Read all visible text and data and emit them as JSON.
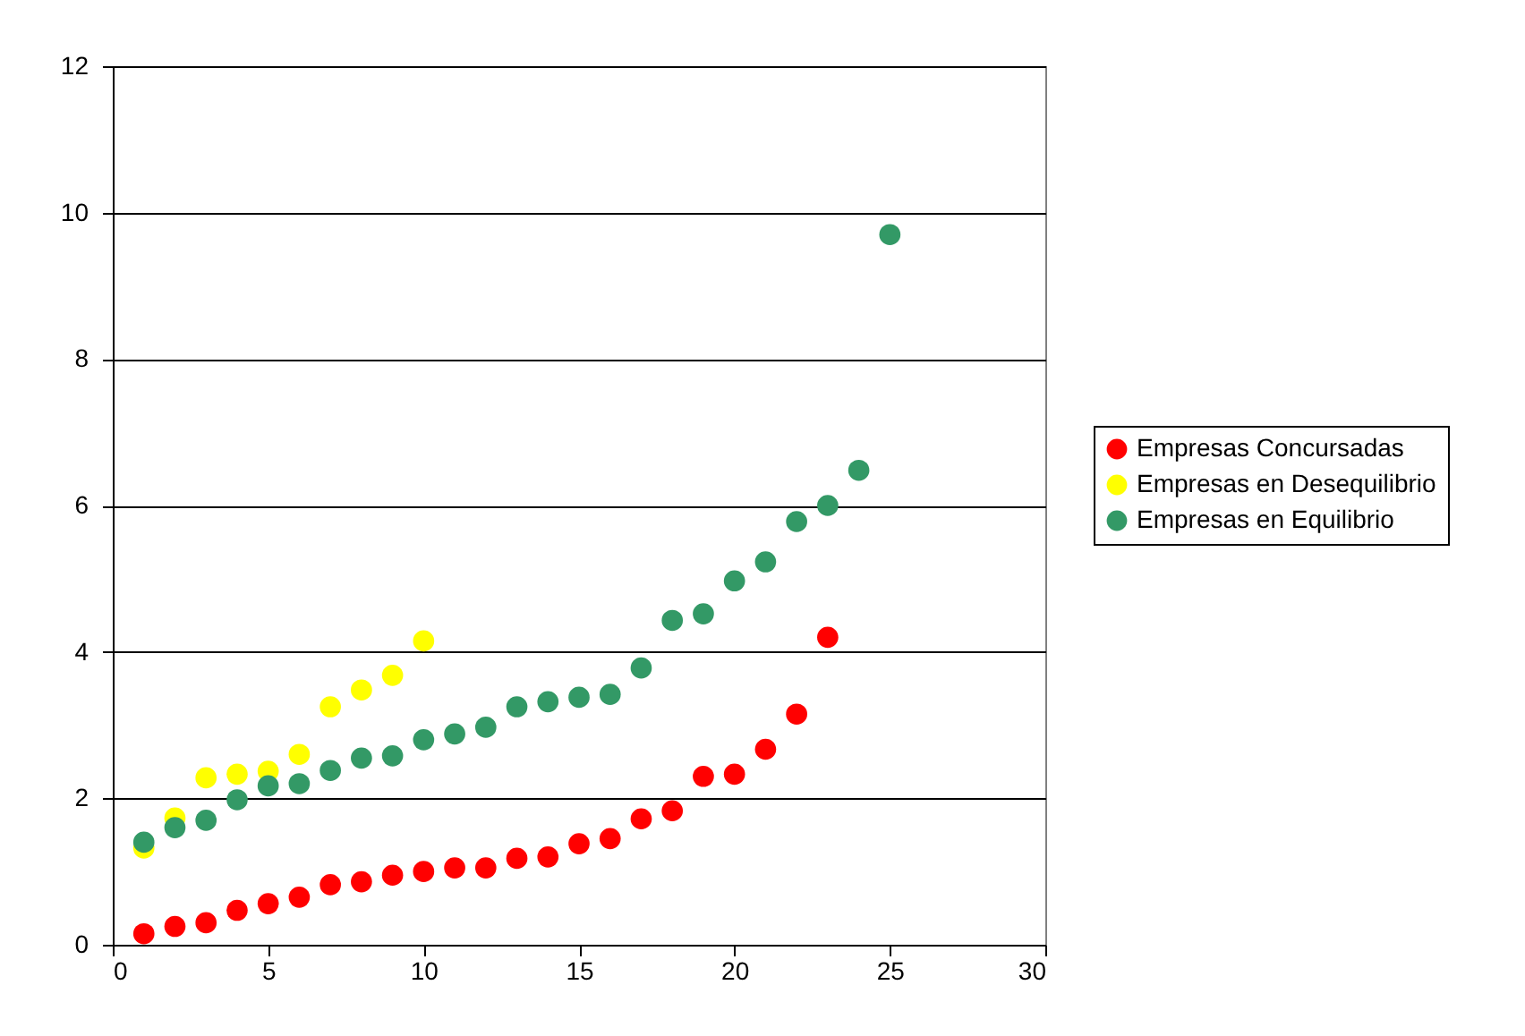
{
  "chart_data": {
    "type": "scatter",
    "x": [
      1,
      2,
      3,
      4,
      5,
      6,
      7,
      8,
      9,
      10,
      11,
      12,
      13,
      14,
      15,
      16,
      17,
      18,
      19,
      20,
      21,
      22,
      23,
      24,
      25
    ],
    "series": [
      {
        "name": "Empresas Concursadas",
        "color": "#ff0000",
        "values": [
          0.15,
          0.25,
          0.3,
          0.47,
          0.56,
          0.65,
          0.82,
          0.86,
          0.95,
          1.0,
          1.05,
          1.05,
          1.18,
          1.2,
          1.38,
          1.45,
          1.72,
          1.83,
          2.3,
          2.33,
          2.67,
          3.15,
          4.2,
          null,
          null
        ]
      },
      {
        "name": "Empresas en Desequilibrio",
        "color": "#ffff00",
        "values": [
          1.32,
          1.73,
          2.28,
          2.33,
          2.37,
          2.6,
          3.25,
          3.48,
          3.68,
          4.15,
          null,
          null,
          null,
          null,
          null,
          null,
          null,
          null,
          null,
          null,
          null,
          null,
          null,
          null,
          null
        ]
      },
      {
        "name": "Empresas en Equilibrio",
        "color": "#339966",
        "values": [
          1.4,
          1.6,
          1.7,
          1.98,
          2.17,
          2.2,
          2.38,
          2.55,
          2.58,
          2.8,
          2.88,
          2.97,
          3.25,
          3.32,
          3.38,
          3.42,
          3.78,
          4.43,
          4.52,
          4.97,
          5.23,
          5.78,
          6.0,
          6.48,
          9.7
        ]
      }
    ],
    "xlim": [
      0,
      30
    ],
    "xticks": [
      0,
      5,
      10,
      15,
      20,
      25,
      30
    ],
    "ylim": [
      0,
      12
    ],
    "yticks": [
      0,
      2,
      4,
      6,
      8,
      10,
      12
    ],
    "grid": "y",
    "legend": "right",
    "marker": "circle"
  }
}
